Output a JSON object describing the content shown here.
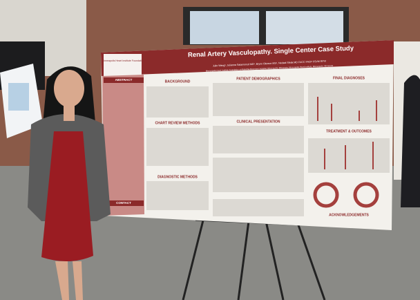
{
  "poster": {
    "logo": "Minneapolis Heart Institute Foundation",
    "title": "Renal Artery Vasculopathy. Single Center Case Study",
    "authors": "Julie Wang¹, Julianna Salamonsd MD¹, Brynn Okeson MS¹, Nedaal Sleak MD FACC FACP FSVM RPVI",
    "affiliations": "Minneapolis Heart Institute Foundation at Abbott Northwestern Hospital, Minneapolis, Minnesota; Minneapolis Heart Institute, Minneapolis, Minnesota",
    "sections": {
      "abstract": "ABSTRACT",
      "contact": "CONTACT",
      "background": "BACKGROUND",
      "chart_review": "CHART REVIEW METHODS",
      "diagnostic": "DIAGNOSTIC METHODS",
      "demographics": "PATIENT DEMOGRAPHICS",
      "clinical": "CLINICAL PRESENTATION",
      "final": "FINAL DIAGNOSES",
      "treatment": "TREATMENT & OUTCOMES",
      "acknowledgements": "ACKNOWLEDGEMENTS"
    }
  }
}
